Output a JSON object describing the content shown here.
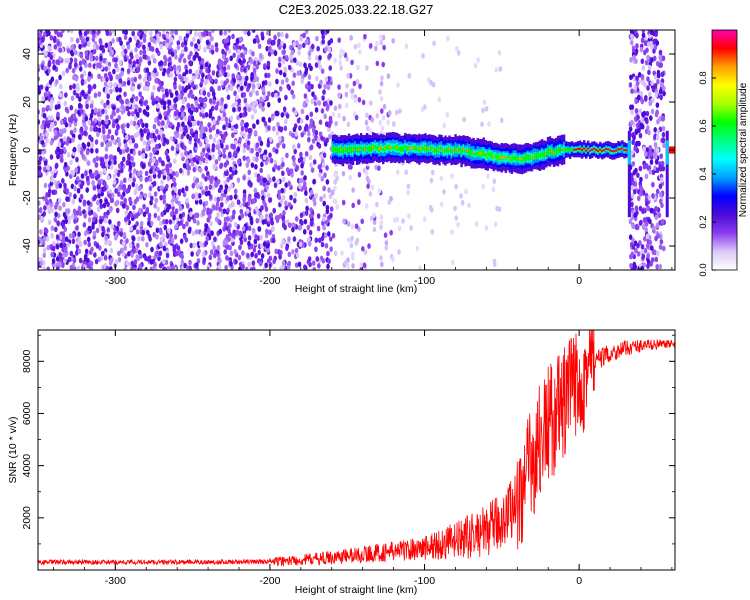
{
  "figure_title": "C2E3.2025.033.22.18.G27",
  "chart_data": [
    {
      "type": "heatmap",
      "xlabel": "Height of straight line (km)",
      "ylabel": "Frequency (Hz)",
      "xlim": [
        -350,
        62
      ],
      "ylim": [
        -50,
        50
      ],
      "x_ticks": [
        -300,
        -200,
        -100,
        0
      ],
      "y_ticks": [
        -40,
        -20,
        0,
        20,
        40
      ],
      "colorbar": {
        "label": "Normalized spectral amplitude",
        "range": [
          0,
          1
        ],
        "ticks": [
          0.0,
          0.2,
          0.4,
          0.6,
          0.8
        ],
        "colormap": [
          "#ffffff",
          "#dcc8f8",
          "#8a3df0",
          "#4b0bd8",
          "#0000ff",
          "#00a0ff",
          "#00ffff",
          "#00ff80",
          "#00ff00",
          "#aaff00",
          "#ffff00",
          "#ffa000",
          "#ff0000",
          "#ff00b0"
        ]
      },
      "ridge": {
        "x": [
          -160,
          -140,
          -120,
          -100,
          -80,
          -60,
          -40,
          -30,
          -20,
          -10,
          0,
          10,
          20,
          30
        ],
        "frequency": [
          0,
          0.5,
          1,
          0.5,
          0,
          -2,
          -4,
          -3,
          -1,
          0,
          0,
          0,
          0,
          0
        ]
      }
    },
    {
      "type": "line",
      "xlabel": "Height of straight line (km)",
      "ylabel": "SNR (10 * v/v)",
      "xlim": [
        -350,
        62
      ],
      "ylim": [
        0,
        9200
      ],
      "x_ticks": [
        -300,
        -200,
        -100,
        0
      ],
      "y_ticks": [
        2000,
        4000,
        6000,
        8000
      ],
      "color": "#ff0000",
      "series": [
        {
          "x": [
            -350,
            -300,
            -250,
            -200,
            -180,
            -160,
            -140,
            -120,
            -100,
            -90,
            -80,
            -70,
            -60,
            -50,
            -40,
            -35,
            -30,
            -25,
            -20,
            -15,
            -10,
            -5,
            0,
            5,
            10,
            20,
            30,
            40,
            50,
            62
          ],
          "values": [
            300,
            300,
            300,
            320,
            380,
            480,
            600,
            720,
            850,
            980,
            1100,
            1300,
            1500,
            1900,
            2700,
            3300,
            4200,
            5000,
            5600,
            5900,
            6300,
            6800,
            7300,
            7700,
            8000,
            8300,
            8500,
            8600,
            8650,
            8650
          ]
        }
      ]
    }
  ]
}
